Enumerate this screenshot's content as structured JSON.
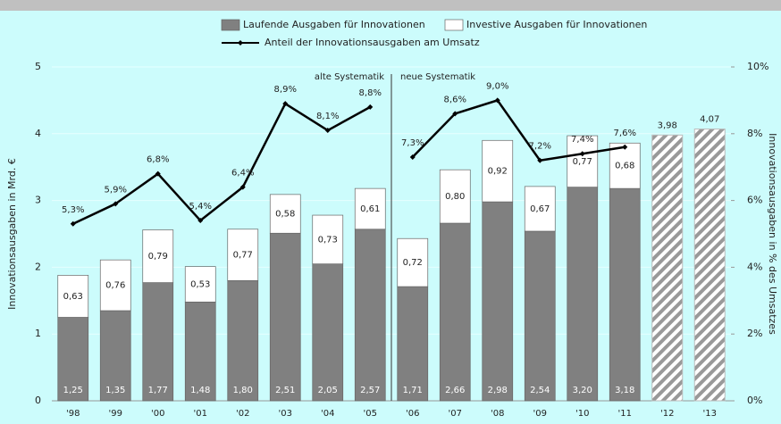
{
  "chart_data": {
    "type": "bar",
    "stacked": true,
    "categories": [
      "'98",
      "'99",
      "'00",
      "'01",
      "'02",
      "'03",
      "'04",
      "'05",
      "'06",
      "'07",
      "'08",
      "'09",
      "'10",
      "'11",
      "'12",
      "'13"
    ],
    "ylabel": "Innovationsausgaben in Mrd. €",
    "y2label": "Innovationsausgaben in % des Umsatzes",
    "ylim": [
      0,
      5
    ],
    "yticks": [
      0,
      1,
      2,
      3,
      4,
      5
    ],
    "y2lim": [
      0,
      10
    ],
    "y2ticks": [
      {
        "value": 0,
        "label": "0%"
      },
      {
        "value": 2,
        "label": "2%"
      },
      {
        "value": 4,
        "label": "4%"
      },
      {
        "value": 6,
        "label": "6%"
      },
      {
        "value": 8,
        "label": "8%"
      },
      {
        "value": 10,
        "label": "10%"
      }
    ],
    "grid": true,
    "annotations": [
      "alte Systematik",
      "neue Systematik"
    ],
    "divider_after": "'05",
    "series": [
      {
        "name": "Laufende Ausgaben für Innovationen",
        "color": "#808080",
        "values": [
          1.25,
          1.35,
          1.77,
          1.48,
          1.8,
          2.51,
          2.05,
          2.57,
          1.71,
          2.66,
          2.98,
          2.54,
          3.2,
          3.18,
          null,
          null
        ],
        "value_labels": [
          "1,25",
          "1,35",
          "1,77",
          "1,48",
          "1,80",
          "2,51",
          "2,05",
          "2,57",
          "1,71",
          "2,66",
          "2,98",
          "2,54",
          "3,20",
          "3,18",
          null,
          null
        ]
      },
      {
        "name": "Investive Ausgaben für Innovationen",
        "color": "#ffffff",
        "values": [
          0.63,
          0.76,
          0.79,
          0.53,
          0.77,
          0.58,
          0.73,
          0.61,
          0.72,
          0.8,
          0.92,
          0.67,
          0.77,
          0.68,
          null,
          null
        ],
        "value_labels": [
          "0,63",
          "0,76",
          "0,79",
          "0,53",
          "0,77",
          "0,58",
          "0,73",
          "0,61",
          "0,72",
          "0,80",
          "0,92",
          "0,67",
          "0,77",
          "0,68",
          null,
          null
        ]
      },
      {
        "color": "#999999",
        "pattern": "hatch",
        "values": [
          null,
          null,
          null,
          null,
          null,
          null,
          null,
          null,
          null,
          null,
          null,
          null,
          null,
          null,
          3.98,
          4.07
        ],
        "value_labels": [
          null,
          null,
          null,
          null,
          null,
          null,
          null,
          null,
          null,
          null,
          null,
          null,
          null,
          null,
          "3,98",
          "4,07"
        ]
      },
      {
        "name": "Anteil der Innovationsausgaben am Umsatz",
        "type": "line",
        "axis": "y2",
        "color": "#000000",
        "values": [
          5.3,
          5.9,
          6.8,
          5.4,
          6.4,
          8.9,
          8.1,
          8.8,
          7.3,
          8.6,
          9.0,
          7.2,
          7.4,
          7.6,
          null,
          null
        ],
        "value_labels": [
          "5,3%",
          "5,9%",
          "6,8%",
          "5,4%",
          "6,4%",
          "8,9%",
          "8,1%",
          "8,8%",
          "7,3%",
          "8,6%",
          "9,0%",
          "7,2%",
          "7,4%",
          "7,6%",
          null,
          null
        ]
      }
    ]
  }
}
